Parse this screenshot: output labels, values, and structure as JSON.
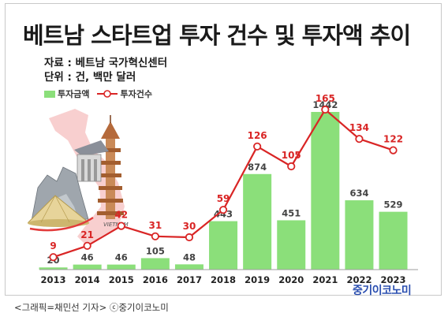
{
  "header": {
    "title": "베트남 스타트업 투자 건수 및 투자액 추이",
    "source": "자료 : 베트남 국가혁신센터",
    "unit": "단위 : 건, 백만 달러"
  },
  "legend": {
    "bar_label": "투자금액",
    "line_label": "투자건수"
  },
  "footer": {
    "caption": "<그래픽=채민선 기자>     ⓒ중기이코노미",
    "brand": "중기이코노미"
  },
  "illustration": {
    "vietnam_label": "VIETNAM"
  },
  "colors": {
    "bar": "#8bdf7a",
    "line": "#d92525",
    "marker_fill": "#ffffff"
  },
  "chart_data": {
    "type": "bar",
    "categories": [
      "2013",
      "2014",
      "2015",
      "2016",
      "2017",
      "2018",
      "2019",
      "2020",
      "2021",
      "2022",
      "2023"
    ],
    "series": [
      {
        "name": "투자금액",
        "type": "bar",
        "values": [
          20,
          46,
          46,
          105,
          48,
          443,
          874,
          451,
          1442,
          634,
          529
        ]
      },
      {
        "name": "투자건수",
        "type": "line",
        "values": [
          9,
          21,
          42,
          31,
          30,
          59,
          126,
          105,
          165,
          134,
          122
        ]
      }
    ],
    "bar_ylim": [
      0,
      1500
    ],
    "line_ylim": [
      0,
      200
    ]
  }
}
